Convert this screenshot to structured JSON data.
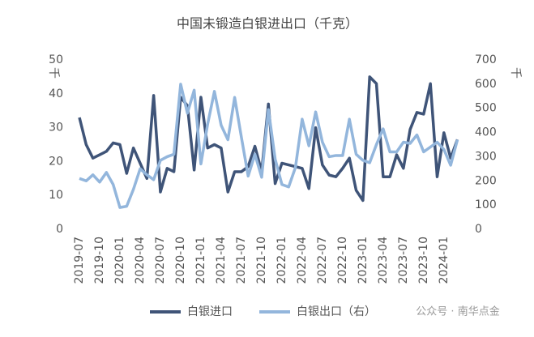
{
  "chart_data": {
    "type": "line",
    "title": "中国未锻造白银进出口（千克）",
    "ylabel": "千",
    "y2label": "千",
    "watermark": "公众号 · 南华点金",
    "categories": [
      "2019-07",
      null,
      null,
      "2019-10",
      null,
      null,
      "2020-01",
      null,
      null,
      "2020-04",
      null,
      null,
      "2020-07",
      null,
      null,
      "2020-10",
      null,
      null,
      "2021-01",
      null,
      null,
      "2021-04",
      null,
      null,
      "2021-07",
      null,
      null,
      "2021-10",
      null,
      null,
      "2022-01",
      null,
      null,
      "2022-04",
      null,
      null,
      "2022-07",
      null,
      null,
      "2022-10",
      null,
      null,
      "2023-01",
      null,
      null,
      "2023-04",
      null,
      null,
      "2023-07",
      null,
      null,
      "2023-10",
      null,
      null,
      "2024-01",
      null,
      null
    ],
    "series": [
      {
        "name": "白银进口",
        "color": "#3f5478",
        "values": [
          33,
          25,
          21,
          22,
          23,
          25.5,
          25,
          16.5,
          24,
          19.5,
          15,
          39.5,
          11,
          18,
          17,
          39,
          36.5,
          17.5,
          39,
          24,
          25,
          24,
          11,
          17,
          17,
          18.5,
          24.5,
          17,
          37,
          13.5,
          19.5,
          19,
          18.5,
          18,
          12,
          30,
          19,
          16,
          15.5,
          18,
          21,
          11.5,
          8.5,
          45,
          43,
          15.5,
          15.5,
          22,
          18,
          29.5,
          34.5,
          34,
          43,
          15.5,
          28.5,
          21,
          26.5
        ]
      },
      {
        "name": "白银出口（右）",
        "color": "#93b6dc",
        "axis": "y2",
        "values": [
          210,
          200,
          225,
          195,
          235,
          185,
          90,
          95,
          165,
          250,
          225,
          205,
          285,
          300,
          310,
          600,
          480,
          575,
          270,
          435,
          570,
          430,
          370,
          545,
          380,
          220,
          310,
          215,
          495,
          290,
          185,
          175,
          255,
          455,
          345,
          485,
          360,
          300,
          305,
          305,
          455,
          310,
          285,
          275,
          350,
          415,
          320,
          320,
          360,
          355,
          390,
          320,
          340,
          360,
          330,
          265,
          370
        ]
      }
    ],
    "ylim": [
      0,
      50
    ],
    "yticks": [
      0,
      10,
      20,
      30,
      40,
      50
    ],
    "y2lim": [
      0,
      700
    ],
    "y2ticks": [
      0,
      100,
      200,
      300,
      400,
      500,
      600,
      700
    ],
    "legend": "bottom"
  }
}
